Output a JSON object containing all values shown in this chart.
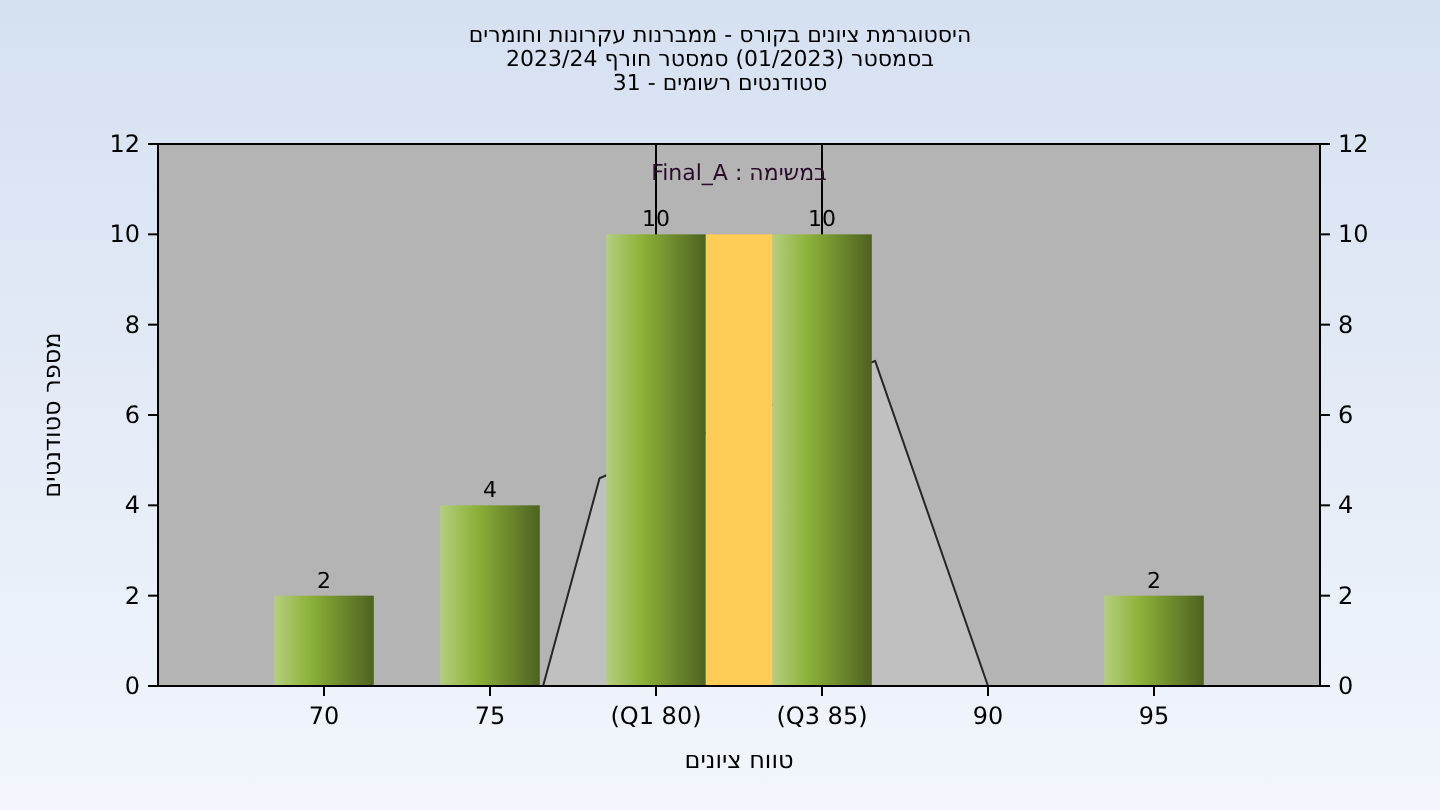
{
  "chart_data": {
    "type": "bar",
    "title": "היסטוגרמת ציונים בקורס - ממברנות עקרונות וחומרים",
    "subtitle": "בסמסטר  (01/2023)  סמסטר חורף 2023/24\nסטודנטים רשומים - 31",
    "xlabel": "טווח ציונים",
    "ylabel": "מספר סטודנטים",
    "annotations": [
      "במשימה : Final_A"
    ],
    "x": [
      70,
      75,
      80,
      85,
      90,
      95
    ],
    "xlim": [
      65,
      100
    ],
    "xticks": [
      70,
      75,
      {
        "value": 80,
        "label": "(Q1 80)"
      },
      {
        "value": 85,
        "label": "(Q3 85)"
      },
      90,
      95
    ],
    "ylim": [
      0,
      12
    ],
    "yticks": [
      0,
      2,
      4,
      6,
      8,
      10,
      12
    ],
    "y2lim": [
      0,
      12
    ],
    "y2ticks": [
      0,
      2,
      4,
      6,
      8,
      10,
      12
    ],
    "series": [
      {
        "type": "area",
        "color": "#c0c0c0",
        "x": [
          76.6,
          78.3,
          86.6,
          90
        ],
        "values": [
          0,
          4.6,
          7.2,
          0
        ]
      },
      {
        "color": "#8db33a",
        "values": [
          2,
          4,
          10,
          10,
          0,
          2
        ],
        "value_labels": [
          "2",
          "4",
          "10",
          "10",
          null,
          "2"
        ]
      },
      {
        "type": "bar",
        "color": "#ffcc55",
        "x": [
          82.5
        ],
        "values": [
          10
        ]
      }
    ],
    "ref_lines": [
      {
        "axis": "x",
        "value": 80,
        "color": "#000000"
      },
      {
        "axis": "x",
        "value": 85,
        "color": "#000000"
      }
    ],
    "grid": false
  }
}
